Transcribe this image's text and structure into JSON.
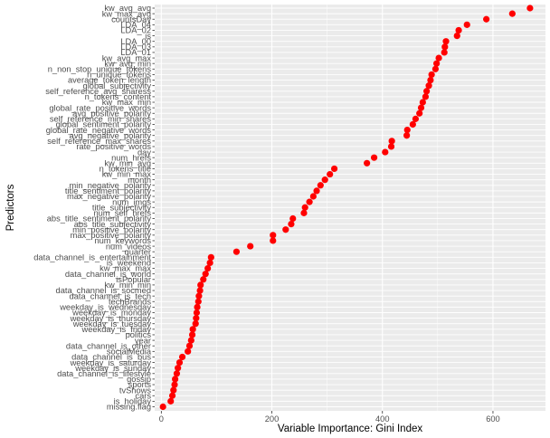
{
  "chart_data": {
    "type": "scatter",
    "xlabel": "Variable Importance: Gini Index",
    "ylabel": "Predictors",
    "xlim": [
      -12,
      695
    ],
    "xticks": [
      0,
      200,
      400,
      600
    ],
    "grid": true,
    "background": "#ebebeb",
    "grid_color": "#ffffff",
    "point_color": "#ff0000",
    "categories": [
      "kw_avg_avg",
      "kw_max_avg",
      "countsDay",
      "LDA_04",
      "LDA_02",
      "is",
      "LDA_00",
      "LDA_03",
      "LDA_01",
      "kw_avg_max",
      "kw_avg_min",
      "n_non_stop_unique_tokens",
      "n_unique_tokens",
      "average_token_length",
      "global_subjectivity",
      "self_reference_avg_sharess",
      "n_tokens_content",
      "kw_max_min",
      "global_rate_positive_words",
      "avg_positive_polarity",
      "self_reference_min_shares",
      "global_sentiment_polarity",
      "global_rate_negative_words",
      "avg_negative_polarity",
      "self_reference_max_shares",
      "rate_positive_words",
      "day",
      "num_hrefs",
      "kw_min_avg",
      "n_tokens_title",
      "kw_min_max",
      "month",
      "min_negative_polarity",
      "title_sentiment_polarity",
      "max_negative_polarity",
      "num_imgs",
      "title_subjectivity",
      "num_self_hrefs",
      "abs_title_sentiment_polarity",
      "abs_title_subjectivity",
      "min_positive_polarity",
      "max_positive_polarity",
      "num_keywords",
      "num_videos",
      "quarter",
      "data_channel_is_entertainment",
      "is_weekend",
      "kw_max_max",
      "data_channel_is_world",
      "isPopular",
      "kw_min_min",
      "data_channel_is_socmed",
      "data_channel_is_tech",
      "techBrands",
      "weekday_is_wednesday",
      "weekday_is_monday",
      "weekday_is_thursday",
      "weekday_is_tuesday",
      "weekday_is_friday",
      "politics",
      "year",
      "data_channel_is_other",
      "socialMedia",
      "data_channel_is_bus",
      "weekday_is_saturday",
      "weekday_is_sunday",
      "data_channel_is_lifestyle",
      "gossip",
      "sports",
      "tvShows",
      "cars",
      "is_holiday",
      "missing.flag"
    ],
    "values": [
      667,
      635,
      588,
      553,
      538,
      535,
      515,
      513,
      512,
      502,
      498,
      496,
      489,
      487,
      484,
      480,
      478,
      473,
      470,
      467,
      460,
      455,
      445,
      444,
      417,
      416,
      405,
      385,
      372,
      313,
      305,
      296,
      288,
      281,
      275,
      268,
      260,
      258,
      238,
      235,
      225,
      202,
      202,
      161,
      136,
      90,
      88,
      84,
      80,
      76,
      71,
      70,
      68,
      67,
      65,
      64,
      63,
      62,
      57,
      56,
      54,
      51,
      48,
      38,
      33,
      30,
      28,
      25,
      24,
      22,
      20,
      17,
      3
    ]
  }
}
